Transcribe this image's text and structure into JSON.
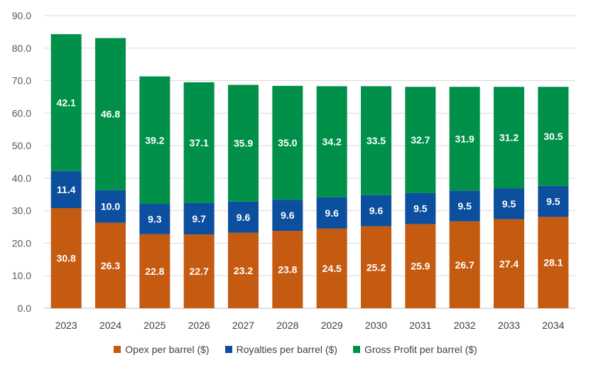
{
  "chart_data": {
    "type": "bar",
    "stacked": true,
    "categories": [
      "2023",
      "2024",
      "2025",
      "2026",
      "2027",
      "2028",
      "2029",
      "2030",
      "2031",
      "2032",
      "2033",
      "2034"
    ],
    "series": [
      {
        "name": "Opex per barrel ($)",
        "color": "#C55A11",
        "values": [
          30.8,
          26.3,
          22.8,
          22.7,
          23.2,
          23.8,
          24.5,
          25.2,
          25.9,
          26.7,
          27.4,
          28.1
        ]
      },
      {
        "name": "Royalties per barrel ($)",
        "color": "#0B4F9E",
        "values": [
          11.4,
          10.0,
          9.3,
          9.7,
          9.6,
          9.6,
          9.6,
          9.6,
          9.5,
          9.5,
          9.5,
          9.5
        ]
      },
      {
        "name": "Gross Profit per barrel ($)",
        "color": "#00904A",
        "values": [
          42.1,
          46.8,
          39.2,
          37.1,
          35.9,
          35.0,
          34.2,
          33.5,
          32.7,
          31.9,
          31.2,
          30.5
        ]
      }
    ],
    "yticks": [
      "0.0",
      "10.0",
      "20.0",
      "30.0",
      "40.0",
      "50.0",
      "60.0",
      "70.0",
      "80.0",
      "90.0"
    ],
    "ylim": [
      0,
      90
    ],
    "grid": true,
    "legend_position": "bottom"
  }
}
